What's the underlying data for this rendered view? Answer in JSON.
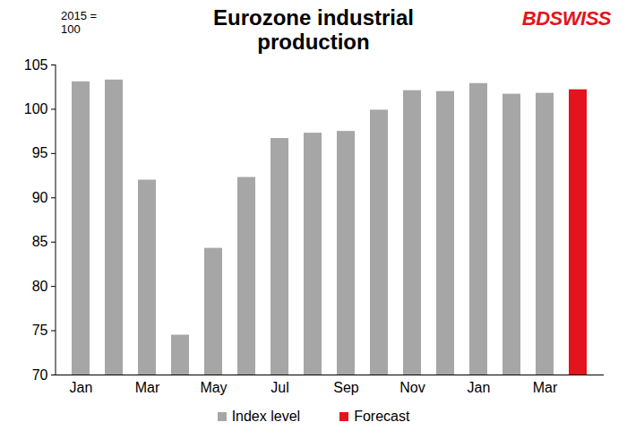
{
  "chart_data": {
    "type": "bar",
    "title": "Eurozone industrial production",
    "annotations": [
      "2015 = 100"
    ],
    "logo": "BDSWISS",
    "categories": [
      "Jan",
      null,
      "Mar",
      null,
      "May",
      null,
      "Jul",
      null,
      "Sep",
      null,
      "Nov",
      null,
      "Jan",
      null,
      "Mar",
      null
    ],
    "series": [
      {
        "name": "Index level",
        "color": "#a6a6a6",
        "values": [
          103.1,
          103.3,
          92.0,
          74.5,
          84.3,
          92.3,
          96.7,
          97.3,
          97.5,
          99.9,
          102.1,
          102.0,
          102.9,
          101.7,
          101.8,
          null
        ]
      },
      {
        "name": "Forecast",
        "color": "#e3141b",
        "values": [
          null,
          null,
          null,
          null,
          null,
          null,
          null,
          null,
          null,
          null,
          null,
          null,
          null,
          null,
          null,
          102.2
        ]
      }
    ],
    "ylim": [
      70,
      105
    ],
    "yticks": [
      70,
      75,
      80,
      85,
      90,
      95,
      100,
      105
    ],
    "grid": false,
    "legend": "bottom"
  }
}
